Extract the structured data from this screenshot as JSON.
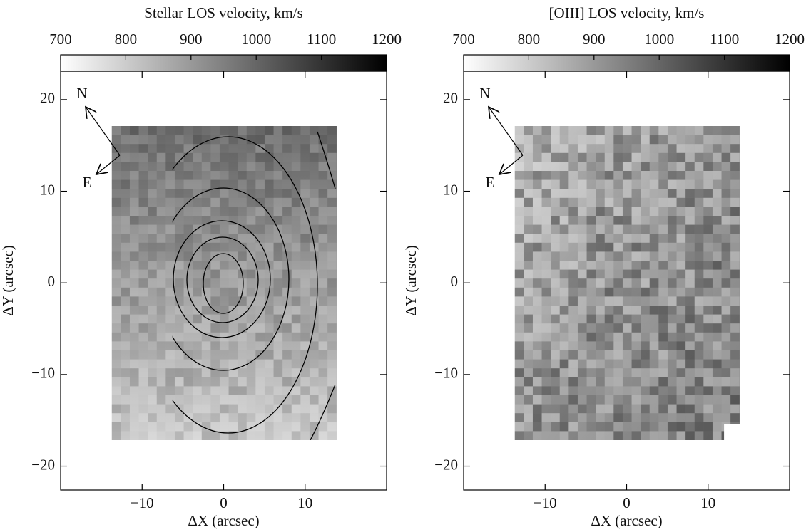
{
  "chart_data": [
    {
      "type": "heatmap",
      "title": "Stellar LOS velocity, km/s",
      "colorbar_lim": [
        700,
        1200
      ],
      "colorbar_ticks": [
        700,
        800,
        900,
        1000,
        1100,
        1200
      ],
      "colormap": [
        "#ffffff",
        "#000000"
      ],
      "xlabel": "ΔX (arcsec)",
      "ylabel": "ΔY (arcsec)",
      "xlim": [
        -20,
        20
      ],
      "ylim": [
        -22.6,
        23.1
      ],
      "xticks": [
        {
          "value": -10,
          "label": "−10"
        },
        0,
        10
      ],
      "yticks": [
        {
          "value": -20,
          "label": "−20"
        },
        {
          "value": -10,
          "label": "−10"
        },
        0,
        10,
        20
      ],
      "annotations": [
        "N",
        "E"
      ]
    },
    {
      "type": "heatmap",
      "title": "[OIII] LOS velocity, km/s",
      "colorbar_lim": [
        700,
        1200
      ],
      "colorbar_ticks": [
        700,
        800,
        900,
        1000,
        1100,
        1200
      ],
      "colormap": [
        "#ffffff",
        "#000000"
      ],
      "xlabel": "ΔX (arcsec)",
      "ylabel": "ΔY (arcsec)",
      "xlim": [
        -20,
        20
      ],
      "ylim": [
        -22.6,
        23.1
      ],
      "xticks": [
        {
          "value": -10,
          "label": "−10"
        },
        0,
        10
      ],
      "yticks": [
        {
          "value": -20,
          "label": "−20"
        },
        {
          "value": -10,
          "label": "−10"
        },
        0,
        10,
        20
      ],
      "annotations": [
        "N",
        "E"
      ]
    }
  ]
}
